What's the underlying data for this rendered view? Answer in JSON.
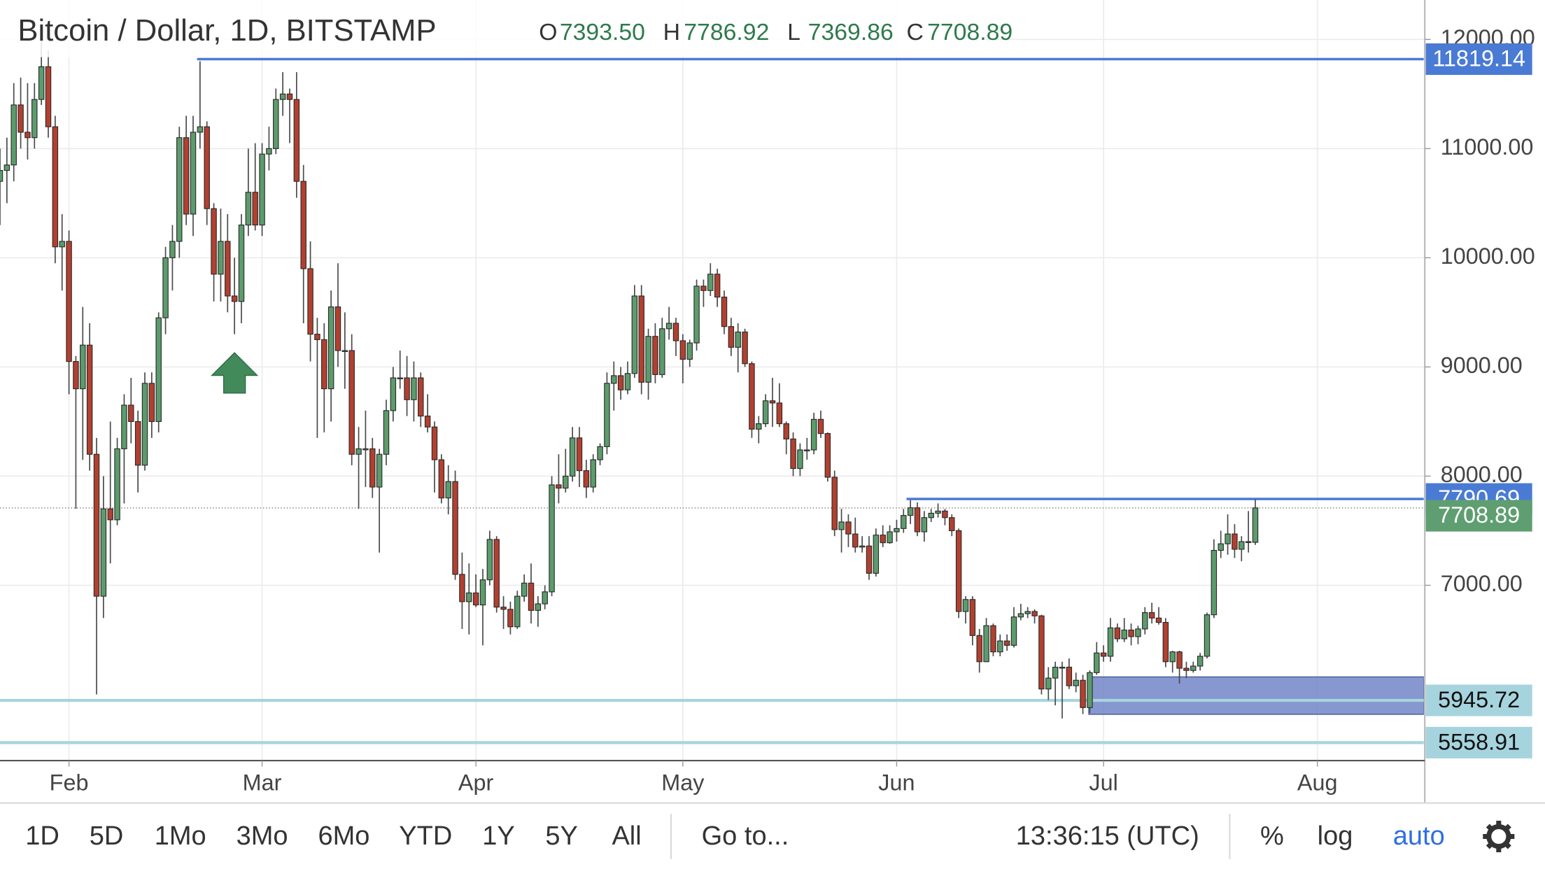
{
  "chart_data": {
    "type": "candlestick",
    "title": "Bitcoin / Dollar, 1D, BITSTAMP",
    "ohlc_legend": [
      {
        "key": "O",
        "value": "7393.50"
      },
      {
        "key": "H",
        "value": "7786.92"
      },
      {
        "key": "L",
        "value": "7369.86"
      },
      {
        "key": "C",
        "value": "7708.89"
      }
    ],
    "categories": [
      null,
      null,
      null,
      null,
      null,
      null,
      null,
      null,
      null,
      null,
      "Feb",
      null,
      null,
      null,
      null,
      null,
      null,
      null,
      null,
      null,
      null,
      null,
      null,
      null,
      null,
      null,
      null,
      null,
      null,
      null,
      null,
      null,
      null,
      null,
      null,
      null,
      null,
      null,
      "Mar",
      null,
      null,
      null,
      null,
      null,
      null,
      null,
      null,
      null,
      null,
      null,
      null,
      null,
      null,
      null,
      null,
      null,
      null,
      null,
      null,
      null,
      null,
      null,
      null,
      null,
      null,
      null,
      null,
      null,
      null,
      "Apr",
      null,
      null,
      null,
      null,
      null,
      null,
      null,
      null,
      null,
      null,
      null,
      null,
      null,
      null,
      null,
      null,
      null,
      null,
      null,
      null,
      null,
      null,
      null,
      null,
      null,
      null,
      null,
      null,
      null,
      "May",
      null,
      null,
      null,
      null,
      null,
      null,
      null,
      null,
      null,
      null,
      null,
      null,
      null,
      null,
      null,
      null,
      null,
      null,
      null,
      null,
      null,
      null,
      null,
      null,
      null,
      null,
      null,
      null,
      null,
      null,
      "Jun",
      null,
      null,
      null,
      null,
      null,
      null,
      null,
      null,
      null,
      null,
      null,
      null,
      null,
      null,
      null,
      null,
      null,
      null,
      null,
      null,
      null,
      null,
      null,
      null,
      null,
      null,
      null,
      null,
      null,
      "Jul",
      null,
      null,
      null,
      null,
      null,
      null,
      null,
      null,
      null,
      null,
      null,
      null,
      null,
      null,
      null,
      null,
      null,
      null,
      null,
      null,
      null,
      null,
      null,
      null,
      null,
      null,
      null,
      null,
      null,
      null,
      "Aug",
      null,
      null,
      null,
      null,
      null,
      null,
      null,
      null,
      null,
      null,
      null,
      null,
      null,
      null
    ],
    "open": [
      10700,
      10800,
      10850,
      11400,
      11150,
      11100,
      11450,
      11750,
      11200,
      10100,
      10150,
      9050,
      8800,
      9200,
      8200,
      6900,
      7700,
      7600,
      8250,
      8650,
      8500,
      8100,
      8850,
      8500,
      9450,
      10000,
      10150,
      11100,
      10400,
      11150,
      11200,
      10450,
      9850,
      10150,
      9650,
      9600,
      10300,
      10600,
      10300,
      10950,
      11000,
      11450,
      11500,
      11450,
      10700,
      9900,
      9300,
      9250,
      8800,
      9550,
      9150,
      9150,
      8200,
      8250,
      8250,
      7900,
      8200,
      8600,
      8900,
      8900,
      8700,
      8900,
      8550,
      8450,
      8150,
      7800,
      7950,
      7100,
      6850,
      6930,
      6820,
      7050,
      7420,
      6800,
      6780,
      6620,
      6900,
      7020,
      6770,
      6830,
      6940,
      7920,
      7890,
      8000,
      8350,
      8050,
      7900,
      8150,
      8270,
      8850,
      8920,
      8790,
      8940,
      9650,
      8860,
      9280,
      8930,
      9350,
      9400,
      9240,
      9070,
      9220,
      9740,
      9700,
      9850,
      9640,
      9370,
      9180,
      9320,
      9030,
      8430,
      8480,
      8690,
      8670,
      8480,
      8340,
      8070,
      8240,
      8240,
      8520,
      8390,
      7990,
      7510,
      7580,
      7470,
      7350,
      7360,
      7110,
      7460,
      7390,
      7490,
      7520,
      7640,
      7710,
      7490,
      7620,
      7660,
      7680,
      7620,
      7500,
      6760,
      6870,
      6540,
      6300,
      6630,
      6390,
      6490,
      6450,
      6710,
      6740,
      6760,
      6720,
      6050,
      6150,
      6250,
      6250,
      6080,
      6130,
      5880,
      6200,
      6380,
      6350,
      6610,
      6510,
      6590,
      6530,
      6600,
      6750,
      6700,
      6660,
      6300,
      6390,
      6240,
      6220,
      6260,
      6350,
      6730,
      7320,
      7380,
      7470,
      7330,
      7400,
      7393.5,
      null,
      null,
      null,
      null,
      null,
      null,
      null,
      null,
      null,
      null,
      null,
      null,
      null,
      null,
      null,
      null,
      null,
      null,
      null,
      null,
      null,
      null,
      null
    ],
    "high": [
      11000,
      11100,
      11600,
      11650,
      11600,
      11600,
      12100,
      11900,
      11300,
      10400,
      10250,
      9100,
      9550,
      9400,
      8350,
      8000,
      8500,
      8350,
      8750,
      8900,
      8600,
      8950,
      8950,
      9500,
      10100,
      10300,
      11200,
      11300,
      11300,
      11800,
      11250,
      10500,
      10450,
      10400,
      10000,
      10400,
      11000,
      11050,
      11050,
      11200,
      11550,
      11700,
      11550,
      11700,
      10850,
      10150,
      9450,
      9400,
      9700,
      9950,
      9500,
      9300,
      8450,
      8600,
      8350,
      8250,
      8700,
      9000,
      9150,
      9100,
      9050,
      8950,
      8750,
      8500,
      8200,
      8100,
      8050,
      7300,
      7200,
      7100,
      7150,
      7500,
      7450,
      6900,
      6850,
      6950,
      7100,
      7200,
      6900,
      7000,
      8000,
      8200,
      8250,
      8450,
      8450,
      8150,
      8200,
      8300,
      8950,
      9050,
      9000,
      9050,
      9750,
      9750,
      9350,
      9400,
      9450,
      9550,
      9450,
      9300,
      9250,
      9800,
      9800,
      9950,
      9900,
      9700,
      9450,
      9400,
      9350,
      9050,
      8550,
      8750,
      8900,
      8850,
      8500,
      8400,
      8300,
      8350,
      8580,
      8600,
      8400,
      8050,
      7700,
      7650,
      7620,
      7450,
      7450,
      7520,
      7550,
      7550,
      7600,
      7700,
      7780,
      7760,
      7680,
      7700,
      7750,
      7700,
      7650,
      7520,
      6900,
      6900,
      6600,
      6700,
      6650,
      6550,
      6550,
      6800,
      6830,
      6800,
      6780,
      6730,
      6250,
      6300,
      6300,
      6330,
      6200,
      6180,
      6220,
      6480,
      6450,
      6700,
      6650,
      6700,
      6650,
      6630,
      6800,
      6840,
      6800,
      6700,
      6400,
      6400,
      6300,
      6300,
      6380,
      6750,
      7420,
      7500,
      7650,
      7560,
      7450,
      7680,
      7786.92,
      null,
      null,
      null,
      null,
      null,
      null,
      null,
      null,
      null,
      null,
      null,
      null,
      null,
      null,
      null,
      null,
      null,
      null,
      null,
      null,
      null,
      null,
      null
    ],
    "low": [
      10300,
      10500,
      10700,
      11000,
      10900,
      11000,
      11400,
      11100,
      9950,
      9700,
      8750,
      7700,
      8150,
      8050,
      6000,
      6700,
      7200,
      7550,
      7750,
      8300,
      7850,
      8050,
      8350,
      8400,
      9300,
      9700,
      10000,
      10300,
      10200,
      11000,
      10300,
      9600,
      9600,
      9500,
      9300,
      9400,
      10200,
      10250,
      10200,
      10800,
      10950,
      11300,
      11050,
      10550,
      9400,
      9050,
      8350,
      8400,
      8500,
      9000,
      8800,
      8100,
      7700,
      7900,
      7800,
      7300,
      8100,
      8500,
      8800,
      8550,
      8500,
      8450,
      8400,
      7850,
      7750,
      7650,
      7050,
      6600,
      6550,
      6800,
      6450,
      7000,
      6750,
      6600,
      6550,
      6600,
      6850,
      6650,
      6620,
      6780,
      6900,
      7750,
      7850,
      7950,
      7900,
      7800,
      7850,
      8100,
      8200,
      8600,
      8700,
      8750,
      8900,
      8750,
      8700,
      8850,
      8900,
      9250,
      9100,
      8850,
      9000,
      9150,
      9550,
      9650,
      9550,
      9300,
      9100,
      8950,
      9000,
      8350,
      8300,
      8450,
      8450,
      8450,
      8200,
      8000,
      8000,
      8150,
      8200,
      8350,
      7950,
      7450,
      7300,
      7350,
      7300,
      7300,
      7050,
      7080,
      7350,
      7380,
      7400,
      7480,
      7560,
      7450,
      7400,
      7580,
      7620,
      7550,
      7450,
      6700,
      6650,
      6450,
      6200,
      6300,
      6350,
      6350,
      6400,
      6430,
      6680,
      6700,
      6650,
      6000,
      5950,
      5900,
      5780,
      6050,
      6020,
      5820,
      5830,
      6180,
      6300,
      6300,
      6480,
      6480,
      6450,
      6460,
      6550,
      6650,
      6640,
      6250,
      6200,
      6100,
      6150,
      6200,
      6220,
      6330,
      6700,
      7250,
      7280,
      7250,
      7220,
      7300,
      7369.86,
      null,
      null,
      null,
      null,
      null,
      null,
      null,
      null,
      null,
      null,
      null,
      null,
      null,
      null,
      null,
      null,
      null,
      null,
      null,
      null,
      null,
      null,
      null
    ],
    "close": [
      10800,
      10850,
      11400,
      11150,
      11100,
      11450,
      11750,
      11200,
      10100,
      10150,
      9050,
      8800,
      9200,
      8200,
      6900,
      7700,
      7600,
      8250,
      8650,
      8500,
      8100,
      8850,
      8500,
      9450,
      10000,
      10150,
      11100,
      10400,
      11150,
      11200,
      10450,
      9850,
      10150,
      9650,
      9600,
      10300,
      10600,
      10300,
      10950,
      11000,
      11450,
      11500,
      11450,
      10700,
      9900,
      9300,
      9250,
      8800,
      9550,
      9150,
      9150,
      8200,
      8250,
      8250,
      7900,
      8200,
      8600,
      8900,
      8900,
      8700,
      8900,
      8550,
      8450,
      8150,
      7800,
      7950,
      7100,
      6850,
      6930,
      6820,
      7050,
      7420,
      6800,
      6780,
      6620,
      6900,
      7020,
      6770,
      6830,
      6940,
      7920,
      7890,
      8000,
      8350,
      8050,
      7900,
      8150,
      8270,
      8850,
      8920,
      8790,
      8940,
      9650,
      8860,
      9280,
      8930,
      9350,
      9400,
      9240,
      9070,
      9220,
      9740,
      9700,
      9850,
      9640,
      9370,
      9180,
      9320,
      9030,
      8430,
      8480,
      8690,
      8670,
      8480,
      8340,
      8070,
      8240,
      8240,
      8520,
      8390,
      7990,
      7510,
      7580,
      7470,
      7350,
      7360,
      7110,
      7460,
      7390,
      7490,
      7520,
      7640,
      7710,
      7490,
      7620,
      7660,
      7680,
      7620,
      7500,
      6760,
      6870,
      6540,
      6300,
      6630,
      6390,
      6490,
      6450,
      6710,
      6740,
      6760,
      6720,
      6050,
      6150,
      6250,
      6250,
      6080,
      6130,
      5880,
      6200,
      6380,
      6350,
      6610,
      6510,
      6590,
      6530,
      6600,
      6750,
      6700,
      6660,
      6300,
      6390,
      6240,
      6220,
      6260,
      6350,
      6730,
      7320,
      7380,
      7470,
      7330,
      7400,
      7393.5,
      7708.89,
      null,
      null,
      null,
      null,
      null,
      null,
      null,
      null,
      null,
      null,
      null,
      null,
      null,
      null,
      null,
      null,
      null,
      null,
      null,
      null,
      null,
      null,
      null
    ],
    "up_color": "#5c9c6c",
    "down_color": "#b3402f",
    "wick_color": "#4a4a4a",
    "ylim": [
      5394,
      12361
    ],
    "yticks": [
      {
        "value": 7000,
        "label": "7000.00"
      },
      {
        "value": 8000,
        "label": "8000.00"
      },
      {
        "value": 9000,
        "label": "9000.00"
      },
      {
        "value": 10000,
        "label": "10000.00"
      },
      {
        "value": 11000,
        "label": "11000.00"
      },
      {
        "value": 12000,
        "label": "12000.00"
      }
    ],
    "grid": true,
    "levels": [
      {
        "value": 11819.14,
        "color": "#4a7bd4",
        "text_color": "#ffffff"
      },
      {
        "value": 7790.69,
        "color": "#4a7bd4",
        "text_color": "#ffffff"
      },
      {
        "value": 5945.72,
        "color": "#a6d4de",
        "text_color": "#111111"
      },
      {
        "value": 5558.91,
        "color": "#a6d4de",
        "text_color": "#111111"
      }
    ],
    "last_price_color": "#5f9e70",
    "zone": {
      "top": 6161,
      "bottom": 5818,
      "color": "#6d80c4"
    }
  },
  "toolbar": {
    "ranges": [
      "1D",
      "5D",
      "1Mo",
      "3Mo",
      "6Mo",
      "YTD",
      "1Y",
      "5Y",
      "All"
    ],
    "goto": "Go to...",
    "clock": "13:36:15 (UTC)",
    "options": [
      "%",
      "log",
      "auto"
    ]
  }
}
